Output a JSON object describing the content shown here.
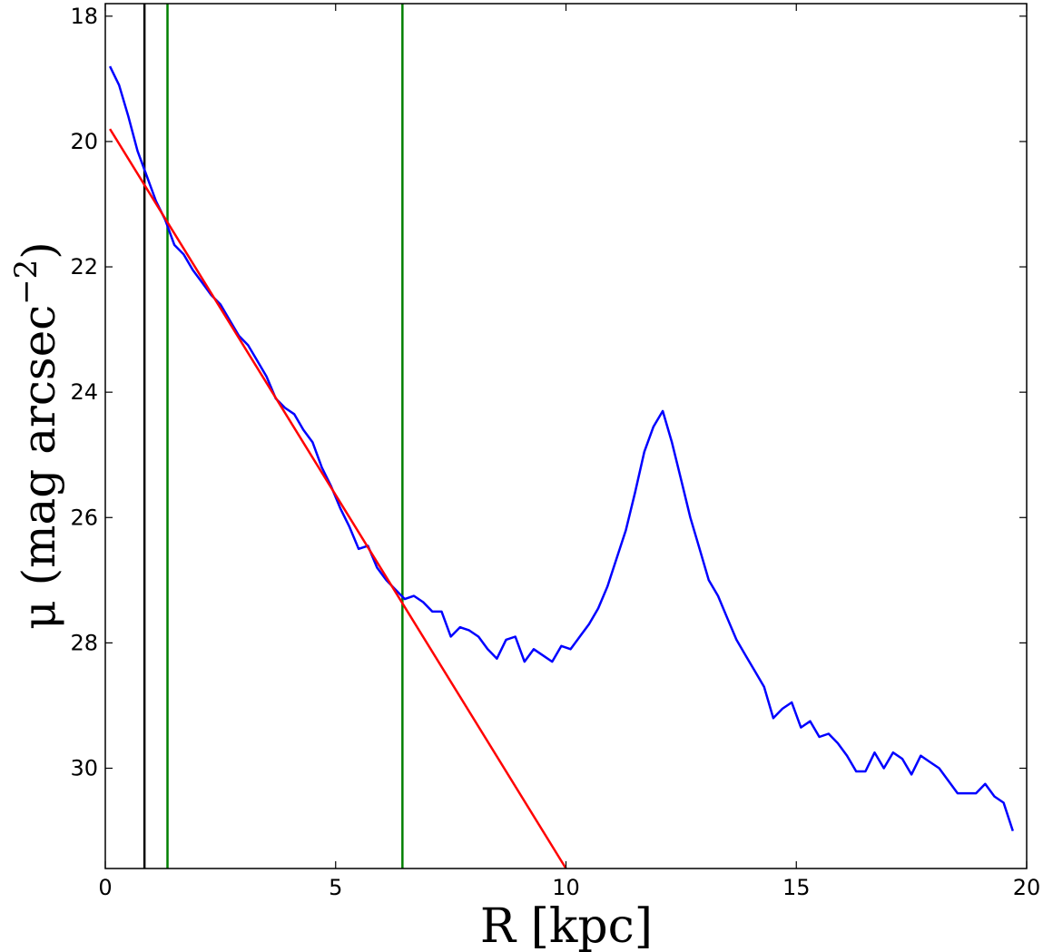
{
  "chart_data": {
    "type": "line",
    "xlabel": "R [kpc]",
    "ylabel": "μ (mag arcsec",
    "ylabel_exponent": "−2",
    "ylabel_close": ")",
    "xlim": [
      0,
      20
    ],
    "ylim": [
      17.8,
      31.6
    ],
    "y_inverted": true,
    "grid": false,
    "xticks": [
      0,
      5,
      10,
      15,
      20
    ],
    "xtick_labels": [
      "0",
      "5",
      "10",
      "15",
      "20"
    ],
    "yticks": [
      18,
      20,
      22,
      24,
      26,
      28,
      30
    ],
    "ytick_labels": [
      "18",
      "20",
      "22",
      "24",
      "26",
      "28",
      "30"
    ],
    "vertical_lines": [
      {
        "x": 0.85,
        "color": "#000000"
      },
      {
        "x": 1.35,
        "color": "#008000"
      },
      {
        "x": 6.45,
        "color": "#008000"
      }
    ],
    "series": [
      {
        "color": "#0000ff",
        "x": [
          0.1,
          0.3,
          0.5,
          0.7,
          0.9,
          1.1,
          1.3,
          1.5,
          1.7,
          1.9,
          2.1,
          2.3,
          2.5,
          2.7,
          2.9,
          3.1,
          3.3,
          3.5,
          3.7,
          3.9,
          4.1,
          4.3,
          4.5,
          4.7,
          4.9,
          5.1,
          5.3,
          5.5,
          5.7,
          5.9,
          6.1,
          6.3,
          6.5,
          6.7,
          6.9,
          7.1,
          7.3,
          7.5,
          7.7,
          7.9,
          8.1,
          8.3,
          8.5,
          8.7,
          8.9,
          9.1,
          9.3,
          9.5,
          9.7,
          9.9,
          10.1,
          10.3,
          10.5,
          10.7,
          10.9,
          11.1,
          11.3,
          11.5,
          11.7,
          11.9,
          12.1,
          12.3,
          12.5,
          12.7,
          12.9,
          13.1,
          13.3,
          13.5,
          13.7,
          13.9,
          14.1,
          14.3,
          14.5,
          14.7,
          14.9,
          15.1,
          15.3,
          15.5,
          15.7,
          15.9,
          16.1,
          16.3,
          16.5,
          16.7,
          16.9,
          17.1,
          17.3,
          17.5,
          17.7,
          17.9,
          18.1,
          18.3,
          18.5,
          18.7,
          18.9,
          19.1,
          19.3,
          19.5,
          19.7
        ],
        "y": [
          18.8,
          19.1,
          19.6,
          20.15,
          20.55,
          20.95,
          21.25,
          21.65,
          21.8,
          22.05,
          22.25,
          22.45,
          22.6,
          22.85,
          23.1,
          23.25,
          23.5,
          23.75,
          24.1,
          24.25,
          24.35,
          24.6,
          24.8,
          25.2,
          25.5,
          25.85,
          26.15,
          26.5,
          26.45,
          26.8,
          27.0,
          27.15,
          27.3,
          27.25,
          27.35,
          27.5,
          27.5,
          27.9,
          27.75,
          27.8,
          27.9,
          28.1,
          28.25,
          27.95,
          27.9,
          28.3,
          28.1,
          28.2,
          28.3,
          28.05,
          28.1,
          27.9,
          27.7,
          27.45,
          27.1,
          26.65,
          26.2,
          25.6,
          24.95,
          24.55,
          24.3,
          24.8,
          25.4,
          26.0,
          26.5,
          27.0,
          27.25,
          27.6,
          27.95,
          28.2,
          28.45,
          28.7,
          29.2,
          29.05,
          28.95,
          29.35,
          29.25,
          29.5,
          29.45,
          29.6,
          29.8,
          30.05,
          30.05,
          29.75,
          30.0,
          29.75,
          29.85,
          30.1,
          29.8,
          29.9,
          30.0,
          30.2,
          30.4,
          30.4,
          30.4,
          30.25,
          30.45,
          30.55,
          31.0
        ]
      },
      {
        "color": "#ff0000",
        "x": [
          0.1,
          10.0
        ],
        "y": [
          19.8,
          31.6
        ]
      }
    ]
  }
}
